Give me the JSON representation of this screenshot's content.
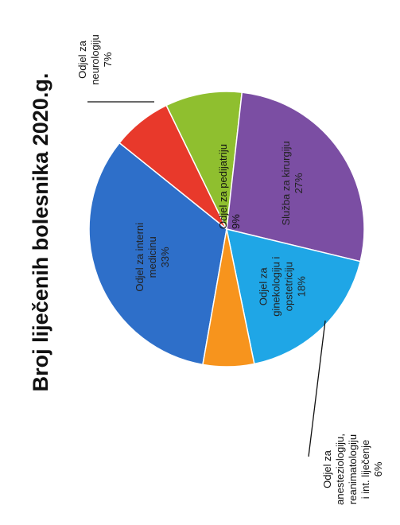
{
  "chart_data": {
    "type": "pie",
    "title": "Broj liječenih bolesnika 2020.g.",
    "slices": [
      {
        "label": "Odjel za internu medicinu",
        "label_lines": [
          "Odjel za interni",
          "medicinu",
          "33%"
        ],
        "value": 33,
        "value_label": "33%",
        "color": "#2e6fc9",
        "label_pos": "inside"
      },
      {
        "label": "Odjel za neurologiju",
        "label_lines": [
          "Odjel za",
          "neurologiju",
          "7%"
        ],
        "value": 7,
        "value_label": "7%",
        "color": "#e8392b",
        "label_pos": "outside"
      },
      {
        "label": "Odjel za pedijatriju",
        "label_lines": [
          "Odjel za pedijatriju",
          "9%"
        ],
        "value": 9,
        "value_label": "9%",
        "color": "#8fbf2f",
        "label_pos": "outside"
      },
      {
        "label": "Služba za kirurgiju",
        "label_lines": [
          "Služba za kirurgiju",
          "27%"
        ],
        "value": 27,
        "value_label": "27%",
        "color": "#7b4ea3",
        "label_pos": "inside"
      },
      {
        "label": "Odjel za ginekologiju i opstetriciju",
        "label_lines": [
          "Odjel za",
          "ginekologiju i",
          "opstetriciju",
          "18%"
        ],
        "value": 18,
        "value_label": "18%",
        "color": "#1fa6e6",
        "label_pos": "inside"
      },
      {
        "label": "Odjel za anesteziologiju, reanimatologiju i int. liječenje",
        "label_lines": [
          "Odjel za",
          "anesteziologiju,",
          "reanimatologiju",
          "i int. liječenje",
          "6%"
        ],
        "value": 6,
        "value_label": "6%",
        "color": "#f7941d",
        "label_pos": "outside"
      }
    ],
    "legend": "none",
    "orientation": "rotated-90-ccw"
  }
}
